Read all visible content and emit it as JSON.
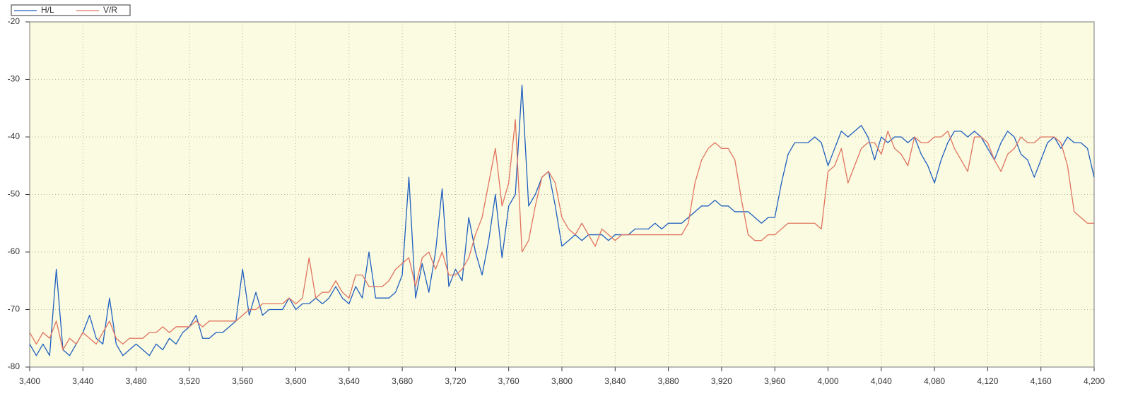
{
  "chart_data": {
    "type": "line",
    "x": [
      3400,
      3405,
      3410,
      3415,
      3420,
      3425,
      3430,
      3435,
      3440,
      3445,
      3450,
      3455,
      3460,
      3465,
      3470,
      3475,
      3480,
      3485,
      3490,
      3495,
      3500,
      3505,
      3510,
      3515,
      3520,
      3525,
      3530,
      3535,
      3540,
      3545,
      3550,
      3555,
      3560,
      3565,
      3570,
      3575,
      3580,
      3585,
      3590,
      3595,
      3600,
      3605,
      3610,
      3615,
      3620,
      3625,
      3630,
      3635,
      3640,
      3645,
      3650,
      3655,
      3660,
      3665,
      3670,
      3675,
      3680,
      3685,
      3690,
      3695,
      3700,
      3705,
      3710,
      3715,
      3720,
      3725,
      3730,
      3735,
      3740,
      3745,
      3750,
      3755,
      3760,
      3765,
      3770,
      3775,
      3780,
      3785,
      3790,
      3795,
      3800,
      3805,
      3810,
      3815,
      3820,
      3825,
      3830,
      3835,
      3840,
      3845,
      3850,
      3855,
      3860,
      3865,
      3870,
      3875,
      3880,
      3885,
      3890,
      3895,
      3900,
      3905,
      3910,
      3915,
      3920,
      3925,
      3930,
      3935,
      3940,
      3945,
      3950,
      3955,
      3960,
      3965,
      3970,
      3975,
      3980,
      3985,
      3990,
      3995,
      4000,
      4005,
      4010,
      4015,
      4020,
      4025,
      4030,
      4035,
      4040,
      4045,
      4050,
      4055,
      4060,
      4065,
      4070,
      4075,
      4080,
      4085,
      4090,
      4095,
      4100,
      4105,
      4110,
      4115,
      4120,
      4125,
      4130,
      4135,
      4140,
      4145,
      4150,
      4155,
      4160,
      4165,
      4170,
      4175,
      4180,
      4185,
      4190,
      4195,
      4200
    ],
    "series": [
      {
        "name": "H/L",
        "color": "#1f5fbf",
        "values": [
          -76,
          -78,
          -76,
          -78,
          -63,
          -77,
          -78,
          -76,
          -74,
          -71,
          -75,
          -76,
          -68,
          -76,
          -78,
          -77,
          -76,
          -77,
          -78,
          -76,
          -77,
          -75,
          -76,
          -74,
          -73,
          -71,
          -75,
          -75,
          -74,
          -74,
          -73,
          -72,
          -63,
          -71,
          -67,
          -71,
          -70,
          -70,
          -70,
          -68,
          -70,
          -69,
          -69,
          -68,
          -69,
          -68,
          -66,
          -68,
          -69,
          -66,
          -68,
          -60,
          -68,
          -68,
          -68,
          -67,
          -64,
          -47,
          -68,
          -62,
          -67,
          -60,
          -49,
          -66,
          -63,
          -65,
          -54,
          -60,
          -64,
          -58,
          -50,
          -61,
          -52,
          -50,
          -31,
          -52,
          -50,
          -47,
          -46,
          -52,
          -59,
          -58,
          -57,
          -58,
          -57,
          -57,
          -57,
          -58,
          -57,
          -57,
          -57,
          -56,
          -56,
          -56,
          -55,
          -56,
          -55,
          -55,
          -55,
          -54,
          -53,
          -52,
          -52,
          -51,
          -52,
          -52,
          -53,
          -53,
          -53,
          -54,
          -55,
          -54,
          -54,
          -48,
          -43,
          -41,
          -41,
          -41,
          -40,
          -41,
          -45,
          -42,
          -39,
          -40,
          -39,
          -38,
          -40,
          -44,
          -40,
          -41,
          -40,
          -40,
          -41,
          -40,
          -43,
          -45,
          -48,
          -44,
          -41,
          -39,
          -39,
          -40,
          -39,
          -40,
          -42,
          -44,
          -41,
          -39,
          -40,
          -43,
          -44,
          -47,
          -44,
          -41,
          -40,
          -42,
          -40,
          -41,
          -41,
          -42,
          -47
        ]
      },
      {
        "name": "V/R",
        "color": "#e0735f",
        "values": [
          -74,
          -76,
          -74,
          -75,
          -72,
          -77,
          -75,
          -76,
          -74,
          -75,
          -76,
          -74,
          -72,
          -75,
          -76,
          -75,
          -75,
          -75,
          -74,
          -74,
          -73,
          -74,
          -73,
          -73,
          -73,
          -72,
          -73,
          -72,
          -72,
          -72,
          -72,
          -72,
          -71,
          -70,
          -70,
          -69,
          -69,
          -69,
          -69,
          -68,
          -69,
          -68,
          -61,
          -68,
          -67,
          -67,
          -65,
          -67,
          -68,
          -64,
          -64,
          -66,
          -66,
          -66,
          -65,
          -63,
          -62,
          -61,
          -66,
          -61,
          -60,
          -63,
          -60,
          -64,
          -64,
          -63,
          -61,
          -57,
          -54,
          -48,
          -42,
          -52,
          -48,
          -37,
          -60,
          -58,
          -52,
          -47,
          -46,
          -48,
          -54,
          -56,
          -57,
          -55,
          -57,
          -59,
          -56,
          -57,
          -58,
          -57,
          -57,
          -57,
          -57,
          -57,
          -57,
          -57,
          -57,
          -57,
          -57,
          -55,
          -48,
          -44,
          -42,
          -41,
          -42,
          -42,
          -44,
          -51,
          -57,
          -58,
          -58,
          -57,
          -57,
          -56,
          -55,
          -55,
          -55,
          -55,
          -55,
          -56,
          -46,
          -45,
          -42,
          -48,
          -45,
          -42,
          -41,
          -41,
          -43,
          -39,
          -42,
          -43,
          -45,
          -40,
          -41,
          -41,
          -40,
          -40,
          -39,
          -42,
          -44,
          -46,
          -40,
          -40,
          -41,
          -44,
          -46,
          -43,
          -42,
          -40,
          -41,
          -41,
          -40,
          -40,
          -40,
          -41,
          -45,
          -53,
          -54,
          -55,
          -55
        ]
      }
    ],
    "xlim": [
      3400,
      4200
    ],
    "xticks": [
      {
        "value": 3400,
        "label": "3,400"
      },
      {
        "value": 3440,
        "label": "3,440"
      },
      {
        "value": 3480,
        "label": "3,480"
      },
      {
        "value": 3520,
        "label": "3,520"
      },
      {
        "value": 3560,
        "label": "3,560"
      },
      {
        "value": 3600,
        "label": "3,600"
      },
      {
        "value": 3640,
        "label": "3,640"
      },
      {
        "value": 3680,
        "label": "3,680"
      },
      {
        "value": 3720,
        "label": "3,720"
      },
      {
        "value": 3760,
        "label": "3,760"
      },
      {
        "value": 3800,
        "label": "3,800"
      },
      {
        "value": 3840,
        "label": "3,840"
      },
      {
        "value": 3880,
        "label": "3,880"
      },
      {
        "value": 3920,
        "label": "3,920"
      },
      {
        "value": 3960,
        "label": "3,960"
      },
      {
        "value": 4000,
        "label": "4,000"
      },
      {
        "value": 4040,
        "label": "4,040"
      },
      {
        "value": 4080,
        "label": "4,080"
      },
      {
        "value": 4120,
        "label": "4,120"
      },
      {
        "value": 4160,
        "label": "4,160"
      },
      {
        "value": 4200,
        "label": "4,200"
      }
    ],
    "ylim": [
      -80,
      -20
    ],
    "yticks": [
      -80,
      -70,
      -60,
      -50,
      -40,
      -30,
      -20
    ],
    "grid": true,
    "legend": "top-left"
  }
}
